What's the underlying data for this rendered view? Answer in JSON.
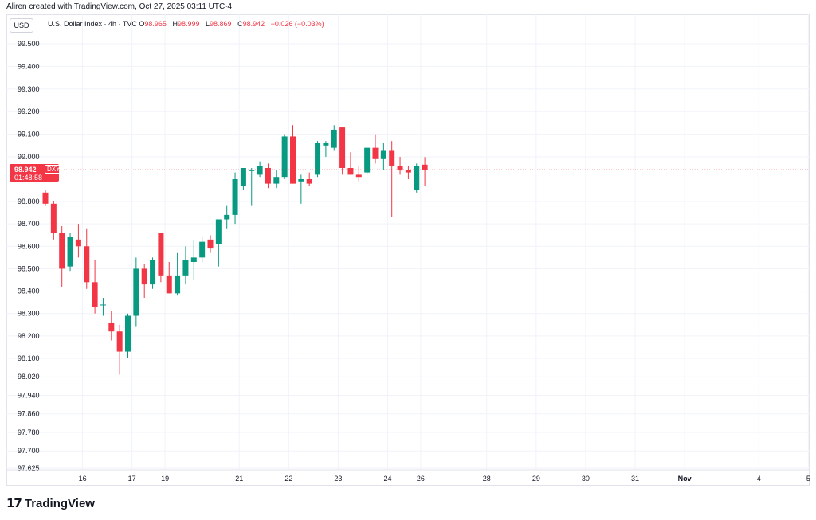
{
  "header": {
    "attribution": "Aliren created with TradingView.com, Oct 27, 2025 03:11 UTC-4"
  },
  "symbol_box": "USD",
  "legend": {
    "title": "U.S. Dollar Index · 4h · TVC",
    "open_label": "O",
    "open": "98.965",
    "high_label": "H",
    "high": "98.999",
    "low_label": "L",
    "low": "98.869",
    "close_label": "C",
    "close": "98.942",
    "change": "−0.026 (−0.03%)"
  },
  "price_tag": {
    "price": "98.942",
    "countdown": "01:48:58",
    "symbol": "DXY",
    "color": "#f23645"
  },
  "brand": {
    "name": "TradingView",
    "icon": "tradingview-logo-icon"
  },
  "colors": {
    "up": "#089981",
    "down": "#f23645",
    "grid": "#f0f3fa"
  },
  "chart_data": {
    "type": "candlestick",
    "title": "U.S. Dollar Index · 4h · TVC",
    "y_axis_labels": [
      "99.500",
      "99.400",
      "99.300",
      "99.200",
      "99.100",
      "99.000",
      "98.800",
      "98.700",
      "98.600",
      "98.500",
      "98.400",
      "98.300",
      "98.200",
      "98.100",
      "98.020",
      "97.940",
      "97.860",
      "97.780",
      "97.700",
      "97.625"
    ],
    "y_axis_values": [
      99.5,
      99.4,
      99.3,
      99.2,
      99.1,
      99.0,
      98.8,
      98.7,
      98.6,
      98.5,
      98.4,
      98.3,
      98.2,
      98.1,
      98.02,
      97.94,
      97.86,
      97.78,
      97.7,
      97.625
    ],
    "x_ticks": [
      {
        "label": "16",
        "index": 4.5
      },
      {
        "label": "17",
        "index": 10.5
      },
      {
        "label": "19",
        "index": 14.5
      },
      {
        "label": "21",
        "index": 23.5
      },
      {
        "label": "22",
        "index": 29.5
      },
      {
        "label": "23",
        "index": 35.5
      },
      {
        "label": "24",
        "index": 41.5
      },
      {
        "label": "26",
        "index": 45.5
      },
      {
        "label": "28",
        "index": 53.5
      },
      {
        "label": "29",
        "index": 59.5
      },
      {
        "label": "30",
        "index": 65.5
      },
      {
        "label": "31",
        "index": 71.5
      },
      {
        "label": "Nov",
        "index": 77.5
      },
      {
        "label": "4",
        "index": 86.5
      },
      {
        "label": "5",
        "index": 92.5
      }
    ],
    "last_price": 98.942,
    "candles": [
      {
        "o": 98.84,
        "h": 98.85,
        "l": 98.78,
        "c": 98.79
      },
      {
        "o": 98.79,
        "h": 98.8,
        "l": 98.63,
        "c": 98.66
      },
      {
        "o": 98.66,
        "h": 98.69,
        "l": 98.42,
        "c": 98.5
      },
      {
        "o": 98.51,
        "h": 98.66,
        "l": 98.49,
        "c": 98.64
      },
      {
        "o": 98.63,
        "h": 98.7,
        "l": 98.55,
        "c": 98.6
      },
      {
        "o": 98.6,
        "h": 98.68,
        "l": 98.41,
        "c": 98.44
      },
      {
        "o": 98.44,
        "h": 98.54,
        "l": 98.3,
        "c": 98.33
      },
      {
        "o": 98.34,
        "h": 98.37,
        "l": 98.29,
        "c": 98.34
      },
      {
        "o": 98.26,
        "h": 98.31,
        "l": 98.18,
        "c": 98.22
      },
      {
        "o": 98.22,
        "h": 98.25,
        "l": 98.03,
        "c": 98.13
      },
      {
        "o": 98.13,
        "h": 98.3,
        "l": 98.1,
        "c": 98.29
      },
      {
        "o": 98.29,
        "h": 98.55,
        "l": 98.24,
        "c": 98.5
      },
      {
        "o": 98.5,
        "h": 98.52,
        "l": 98.37,
        "c": 98.43
      },
      {
        "o": 98.43,
        "h": 98.55,
        "l": 98.41,
        "c": 98.54
      },
      {
        "o": 98.66,
        "h": 98.66,
        "l": 98.44,
        "c": 98.47
      },
      {
        "o": 98.47,
        "h": 98.53,
        "l": 98.39,
        "c": 98.39
      },
      {
        "o": 98.39,
        "h": 98.57,
        "l": 98.38,
        "c": 98.47
      },
      {
        "o": 98.47,
        "h": 98.6,
        "l": 98.43,
        "c": 98.54
      },
      {
        "o": 98.53,
        "h": 98.63,
        "l": 98.45,
        "c": 98.55
      },
      {
        "o": 98.55,
        "h": 98.64,
        "l": 98.53,
        "c": 98.62
      },
      {
        "o": 98.63,
        "h": 98.65,
        "l": 98.57,
        "c": 98.59
      },
      {
        "o": 98.61,
        "h": 98.71,
        "l": 98.51,
        "c": 98.72
      },
      {
        "o": 98.72,
        "h": 98.78,
        "l": 98.68,
        "c": 98.74
      },
      {
        "o": 98.74,
        "h": 98.93,
        "l": 98.7,
        "c": 98.9
      },
      {
        "o": 98.87,
        "h": 98.95,
        "l": 98.85,
        "c": 98.95
      },
      {
        "o": 98.94,
        "h": 98.95,
        "l": 98.78,
        "c": 98.94
      },
      {
        "o": 98.92,
        "h": 98.98,
        "l": 98.91,
        "c": 98.96
      },
      {
        "o": 98.95,
        "h": 98.97,
        "l": 98.86,
        "c": 98.88
      },
      {
        "o": 98.88,
        "h": 98.94,
        "l": 98.86,
        "c": 98.91
      },
      {
        "o": 98.91,
        "h": 99.1,
        "l": 98.9,
        "c": 99.09
      },
      {
        "o": 99.09,
        "h": 99.14,
        "l": 98.88,
        "c": 98.88
      },
      {
        "o": 98.89,
        "h": 98.92,
        "l": 98.79,
        "c": 98.9
      },
      {
        "o": 98.9,
        "h": 98.93,
        "l": 98.87,
        "c": 98.88
      },
      {
        "o": 98.92,
        "h": 99.07,
        "l": 98.91,
        "c": 99.06
      },
      {
        "o": 99.05,
        "h": 99.07,
        "l": 99.0,
        "c": 99.06
      },
      {
        "o": 99.04,
        "h": 99.14,
        "l": 99.03,
        "c": 99.12
      },
      {
        "o": 99.13,
        "h": 99.13,
        "l": 98.92,
        "c": 98.95
      },
      {
        "o": 98.95,
        "h": 99.02,
        "l": 98.92,
        "c": 98.92
      },
      {
        "o": 98.92,
        "h": 98.96,
        "l": 98.89,
        "c": 98.91
      },
      {
        "o": 98.93,
        "h": 99.04,
        "l": 98.92,
        "c": 99.04
      },
      {
        "o": 99.04,
        "h": 99.1,
        "l": 98.97,
        "c": 98.99
      },
      {
        "o": 98.99,
        "h": 99.06,
        "l": 98.94,
        "c": 99.03
      },
      {
        "o": 99.03,
        "h": 99.07,
        "l": 98.73,
        "c": 98.96
      },
      {
        "o": 98.96,
        "h": 99.0,
        "l": 98.92,
        "c": 98.94
      },
      {
        "o": 98.94,
        "h": 98.96,
        "l": 98.9,
        "c": 98.93
      },
      {
        "o": 98.85,
        "h": 98.97,
        "l": 98.84,
        "c": 98.96
      },
      {
        "o": 98.965,
        "h": 98.999,
        "l": 98.869,
        "c": 98.942
      }
    ]
  }
}
